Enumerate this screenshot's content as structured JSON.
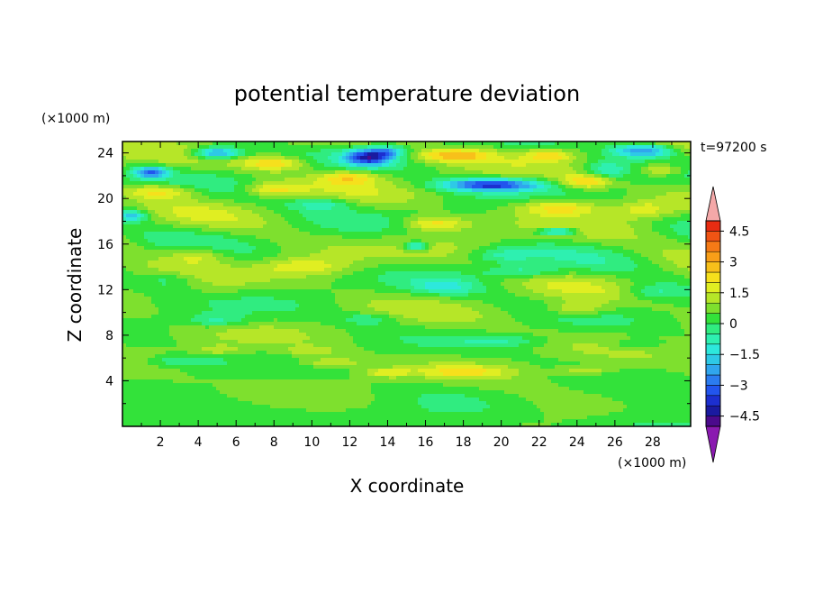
{
  "chart_data": {
    "type": "heatmap",
    "title": "potential temperature deviation",
    "xlabel": "X coordinate",
    "ylabel": "Z coordinate",
    "x_unit": "(×1000 m)",
    "y_unit": "(×1000 m)",
    "time_label": "t=97200 s",
    "xlim": [
      0,
      30
    ],
    "ylim": [
      0,
      25
    ],
    "x_ticks": [
      2,
      4,
      6,
      8,
      10,
      12,
      14,
      16,
      18,
      20,
      22,
      24,
      26,
      28
    ],
    "y_ticks": [
      4,
      8,
      12,
      16,
      20,
      24
    ],
    "x_tick_labels": [
      "2",
      "4",
      "6",
      "8",
      "10",
      "12",
      "14",
      "16",
      "18",
      "20",
      "22",
      "24",
      "26",
      "28"
    ],
    "y_tick_labels": [
      "4",
      "8",
      "12",
      "16",
      "20",
      "24"
    ],
    "colorbar": {
      "levels": [
        -5,
        -4.5,
        -4,
        -3.5,
        -3,
        -2.5,
        -2,
        -1.5,
        -1,
        -0.5,
        0,
        0.5,
        1,
        1.5,
        2,
        2.5,
        3,
        3.5,
        4,
        4.5,
        5
      ],
      "colors": [
        "#4b0a8c",
        "#1a1aa0",
        "#1c2fd0",
        "#2255ee",
        "#2b7cf0",
        "#30a6ee",
        "#2ec9e6",
        "#2de8dc",
        "#2ef0b0",
        "#30ec80",
        "#33e23a",
        "#7ee02e",
        "#b6e628",
        "#e0ee22",
        "#f6e01c",
        "#f8c01a",
        "#f89e18",
        "#f57a16",
        "#f05414",
        "#e82c12"
      ],
      "under_color": "#8a1ab0",
      "over_color": "#f4a8a8",
      "labels": [
        "4.5",
        "3",
        "1.5",
        "0",
        "−1.5",
        "−3",
        "−4.5"
      ],
      "label_values": [
        4.5,
        3,
        1.5,
        0,
        -1.5,
        -3,
        -4.5
      ]
    }
  }
}
